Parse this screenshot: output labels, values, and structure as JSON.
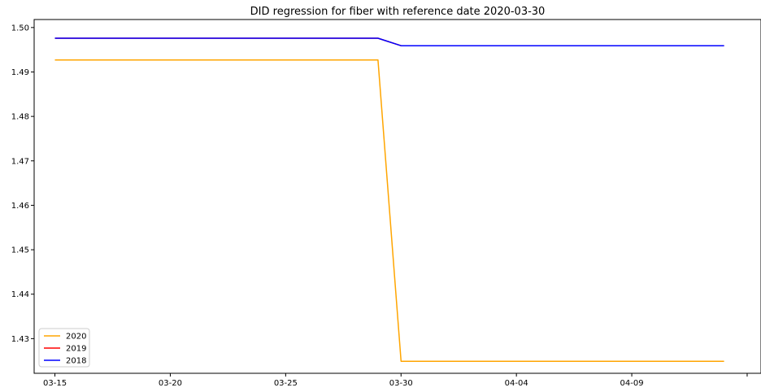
{
  "chart_data": {
    "type": "line",
    "title": "DID regression for fiber with reference date 2020-03-30",
    "xlabel": "",
    "ylabel": "",
    "x_tick_labels": [
      "03-15",
      "03-20",
      "03-25",
      "03-30",
      "04-04",
      "04-09",
      ""
    ],
    "y_tick_labels": [
      "1.43",
      "1.44",
      "1.45",
      "1.46",
      "1.47",
      "1.48",
      "1.49",
      "1.50"
    ],
    "y_ticks": [
      1.43,
      1.44,
      1.45,
      1.46,
      1.47,
      1.48,
      1.49,
      1.5
    ],
    "ylim": [
      1.4222,
      1.5018
    ],
    "x_day_range": [
      -0.9,
      30.6
    ],
    "x_tick_days": [
      0,
      5,
      10,
      15,
      20,
      25,
      30
    ],
    "grid": false,
    "legend_position": "lower-left",
    "series": [
      {
        "name": "2020",
        "color": "#FFA500",
        "x_days": [
          0,
          14,
          15,
          29
        ],
        "values": [
          1.4927,
          1.4927,
          1.4249,
          1.4249
        ]
      },
      {
        "name": "2019",
        "color": "#FF0000",
        "x_days": [
          0,
          14,
          15,
          29
        ],
        "values": [
          1.4976,
          1.4976,
          1.4959,
          1.4959
        ]
      },
      {
        "name": "2018",
        "color": "#0000FF",
        "x_days": [
          0,
          14,
          15,
          29
        ],
        "values": [
          1.4976,
          1.4976,
          1.4959,
          1.4959
        ]
      }
    ]
  }
}
